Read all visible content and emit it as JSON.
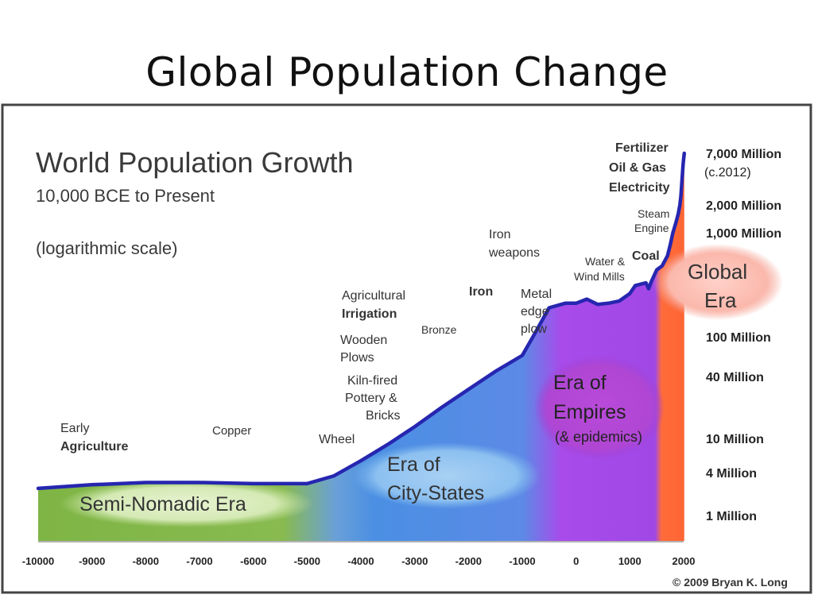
{
  "slide": {
    "title": "Global Population Change"
  },
  "chart_data": {
    "type": "area",
    "title": "World Population Growth",
    "subtitle": "10,000 BCE to Present",
    "scale_note": "(logarithmic scale)",
    "y_scale": "log",
    "ylim": [
      1,
      7000
    ],
    "y_unit": "Million",
    "x_ticks": [
      -10000,
      -9000,
      -8000,
      -7000,
      -6000,
      -5000,
      -4000,
      -3000,
      -2000,
      -1000,
      0,
      1000,
      2000
    ],
    "x_tick_labels": [
      "-10000",
      "-9000",
      "-8000",
      "-7000",
      "-6000",
      "-5000",
      "-4000",
      "-3000",
      "-2000",
      "-1000",
      "0",
      "1000",
      "2000"
    ],
    "y_ticks": [
      {
        "value": 1,
        "label": "1 Million"
      },
      {
        "value": 4,
        "label": "4 Million"
      },
      {
        "value": 10,
        "label": "10 Million"
      },
      {
        "value": 40,
        "label": "40 Million"
      },
      {
        "value": 100,
        "label": "100 Million"
      },
      {
        "value": 1000,
        "label": "1,000 Million"
      },
      {
        "value": 2000,
        "label": "2,000 Million"
      },
      {
        "value": 7000,
        "label": "7,000 Million",
        "sub": "(c.2012)"
      }
    ],
    "series": [
      {
        "x": [
          -10000,
          -9000,
          -8000,
          -7000,
          -6000,
          -5000,
          -4500,
          -4000,
          -3500,
          -3000,
          -2500,
          -2000,
          -1500,
          -1000,
          -800,
          -500,
          -200,
          0,
          200,
          400,
          600,
          800,
          1000,
          1100,
          1200,
          1300,
          1350,
          1400,
          1500,
          1600,
          1700,
          1750,
          1800,
          1850,
          1900,
          1930,
          1950,
          1970,
          1990,
          2000,
          2012
        ],
        "y": [
          2.4,
          2.7,
          2.9,
          2.9,
          2.8,
          2.8,
          3.6,
          5.5,
          8.5,
          13,
          20,
          30,
          45,
          65,
          100,
          190,
          210,
          210,
          230,
          205,
          210,
          220,
          260,
          310,
          320,
          330,
          290,
          340,
          440,
          480,
          600,
          760,
          1000,
          1250,
          1600,
          2000,
          2500,
          3700,
          5300,
          6100,
          7000
        ]
      }
    ],
    "eras": [
      "Semi-Nomadic Era",
      "Era of City-States",
      "Era of Empires",
      "(& epidemics)",
      "Global Era"
    ],
    "era_colors": [
      "#7ab648",
      "#4a8fe0",
      "#a040e0",
      "#ff6a3c"
    ],
    "line_color": "#2626b0",
    "annotations": [
      {
        "text": "Early",
        "bold": false
      },
      {
        "text": "Agriculture",
        "bold": true
      },
      {
        "text": "Copper",
        "bold": false
      },
      {
        "text": "Wheel",
        "bold": false
      },
      {
        "text": "Agricultural",
        "bold": false
      },
      {
        "text": "Irrigation",
        "bold": true
      },
      {
        "text": "Wooden",
        "bold": false
      },
      {
        "text": "Plows",
        "bold": false
      },
      {
        "text": "Kiln-fired",
        "bold": false
      },
      {
        "text": "Pottery &",
        "bold": false
      },
      {
        "text": "Bricks",
        "bold": false
      },
      {
        "text": "Bronze",
        "bold": false
      },
      {
        "text": "Iron",
        "bold": true
      },
      {
        "text": "Iron",
        "bold": false
      },
      {
        "text": "weapons",
        "bold": false
      },
      {
        "text": "Metal",
        "bold": false
      },
      {
        "text": "edge",
        "bold": false
      },
      {
        "text": "plow",
        "bold": false
      },
      {
        "text": "Water &",
        "bold": false
      },
      {
        "text": "Wind Mills",
        "bold": false
      },
      {
        "text": "Coal",
        "bold": true
      },
      {
        "text": "Steam",
        "bold": false
      },
      {
        "text": "Engine",
        "bold": false
      },
      {
        "text": "Fertilizer",
        "bold": true
      },
      {
        "text": "Oil & Gas",
        "bold": true
      },
      {
        "text": "Electricity",
        "bold": true
      }
    ],
    "copyright": "© 2009 Bryan K. Long"
  }
}
